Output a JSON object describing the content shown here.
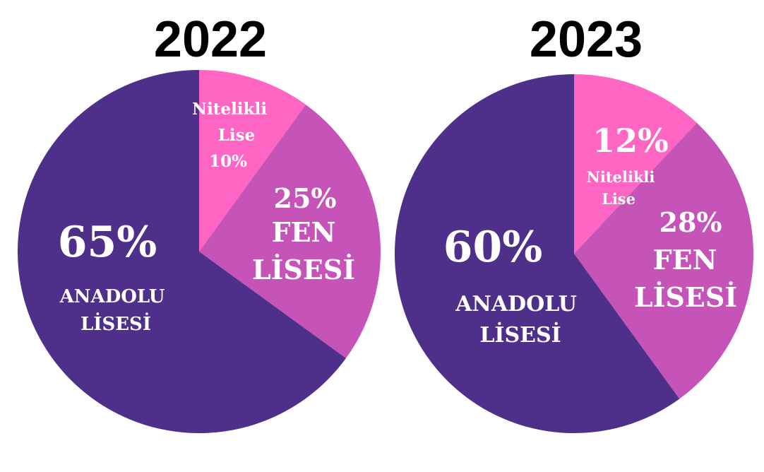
{
  "chart_data": [
    {
      "type": "pie",
      "title": "2022",
      "slices": [
        {
          "label": "Nitelikli Lise",
          "value": 10,
          "value_text": "10%",
          "name_lines": [
            "Nitelikli",
            "Lise"
          ],
          "color": "#ff66c4"
        },
        {
          "label": "FEN LİSESİ",
          "value": 25,
          "value_text": "25%",
          "name_lines": [
            "FEN",
            "LİSESİ"
          ],
          "color": "#c653b8"
        },
        {
          "label": "ANADOLU LİSESİ",
          "value": 65,
          "value_text": "65%",
          "name_lines": [
            "ANADOLU",
            "LİSESİ"
          ],
          "color": "#4e2f8a"
        }
      ]
    },
    {
      "type": "pie",
      "title": "2023",
      "slices": [
        {
          "label": "Nitelikli Lise",
          "value": 12,
          "value_text": "12%",
          "name_lines": [
            "Nitelikli",
            "Lise"
          ],
          "color": "#ff66c4"
        },
        {
          "label": "FEN LİSESİ",
          "value": 28,
          "value_text": "28%",
          "name_lines": [
            "FEN",
            "LİSESİ"
          ],
          "color": "#c653b8"
        },
        {
          "label": "ANADOLU LİSESİ",
          "value": 60,
          "value_text": "60%",
          "name_lines": [
            "ANADOLU",
            "LİSESİ"
          ],
          "color": "#4e2f8a"
        }
      ]
    }
  ]
}
